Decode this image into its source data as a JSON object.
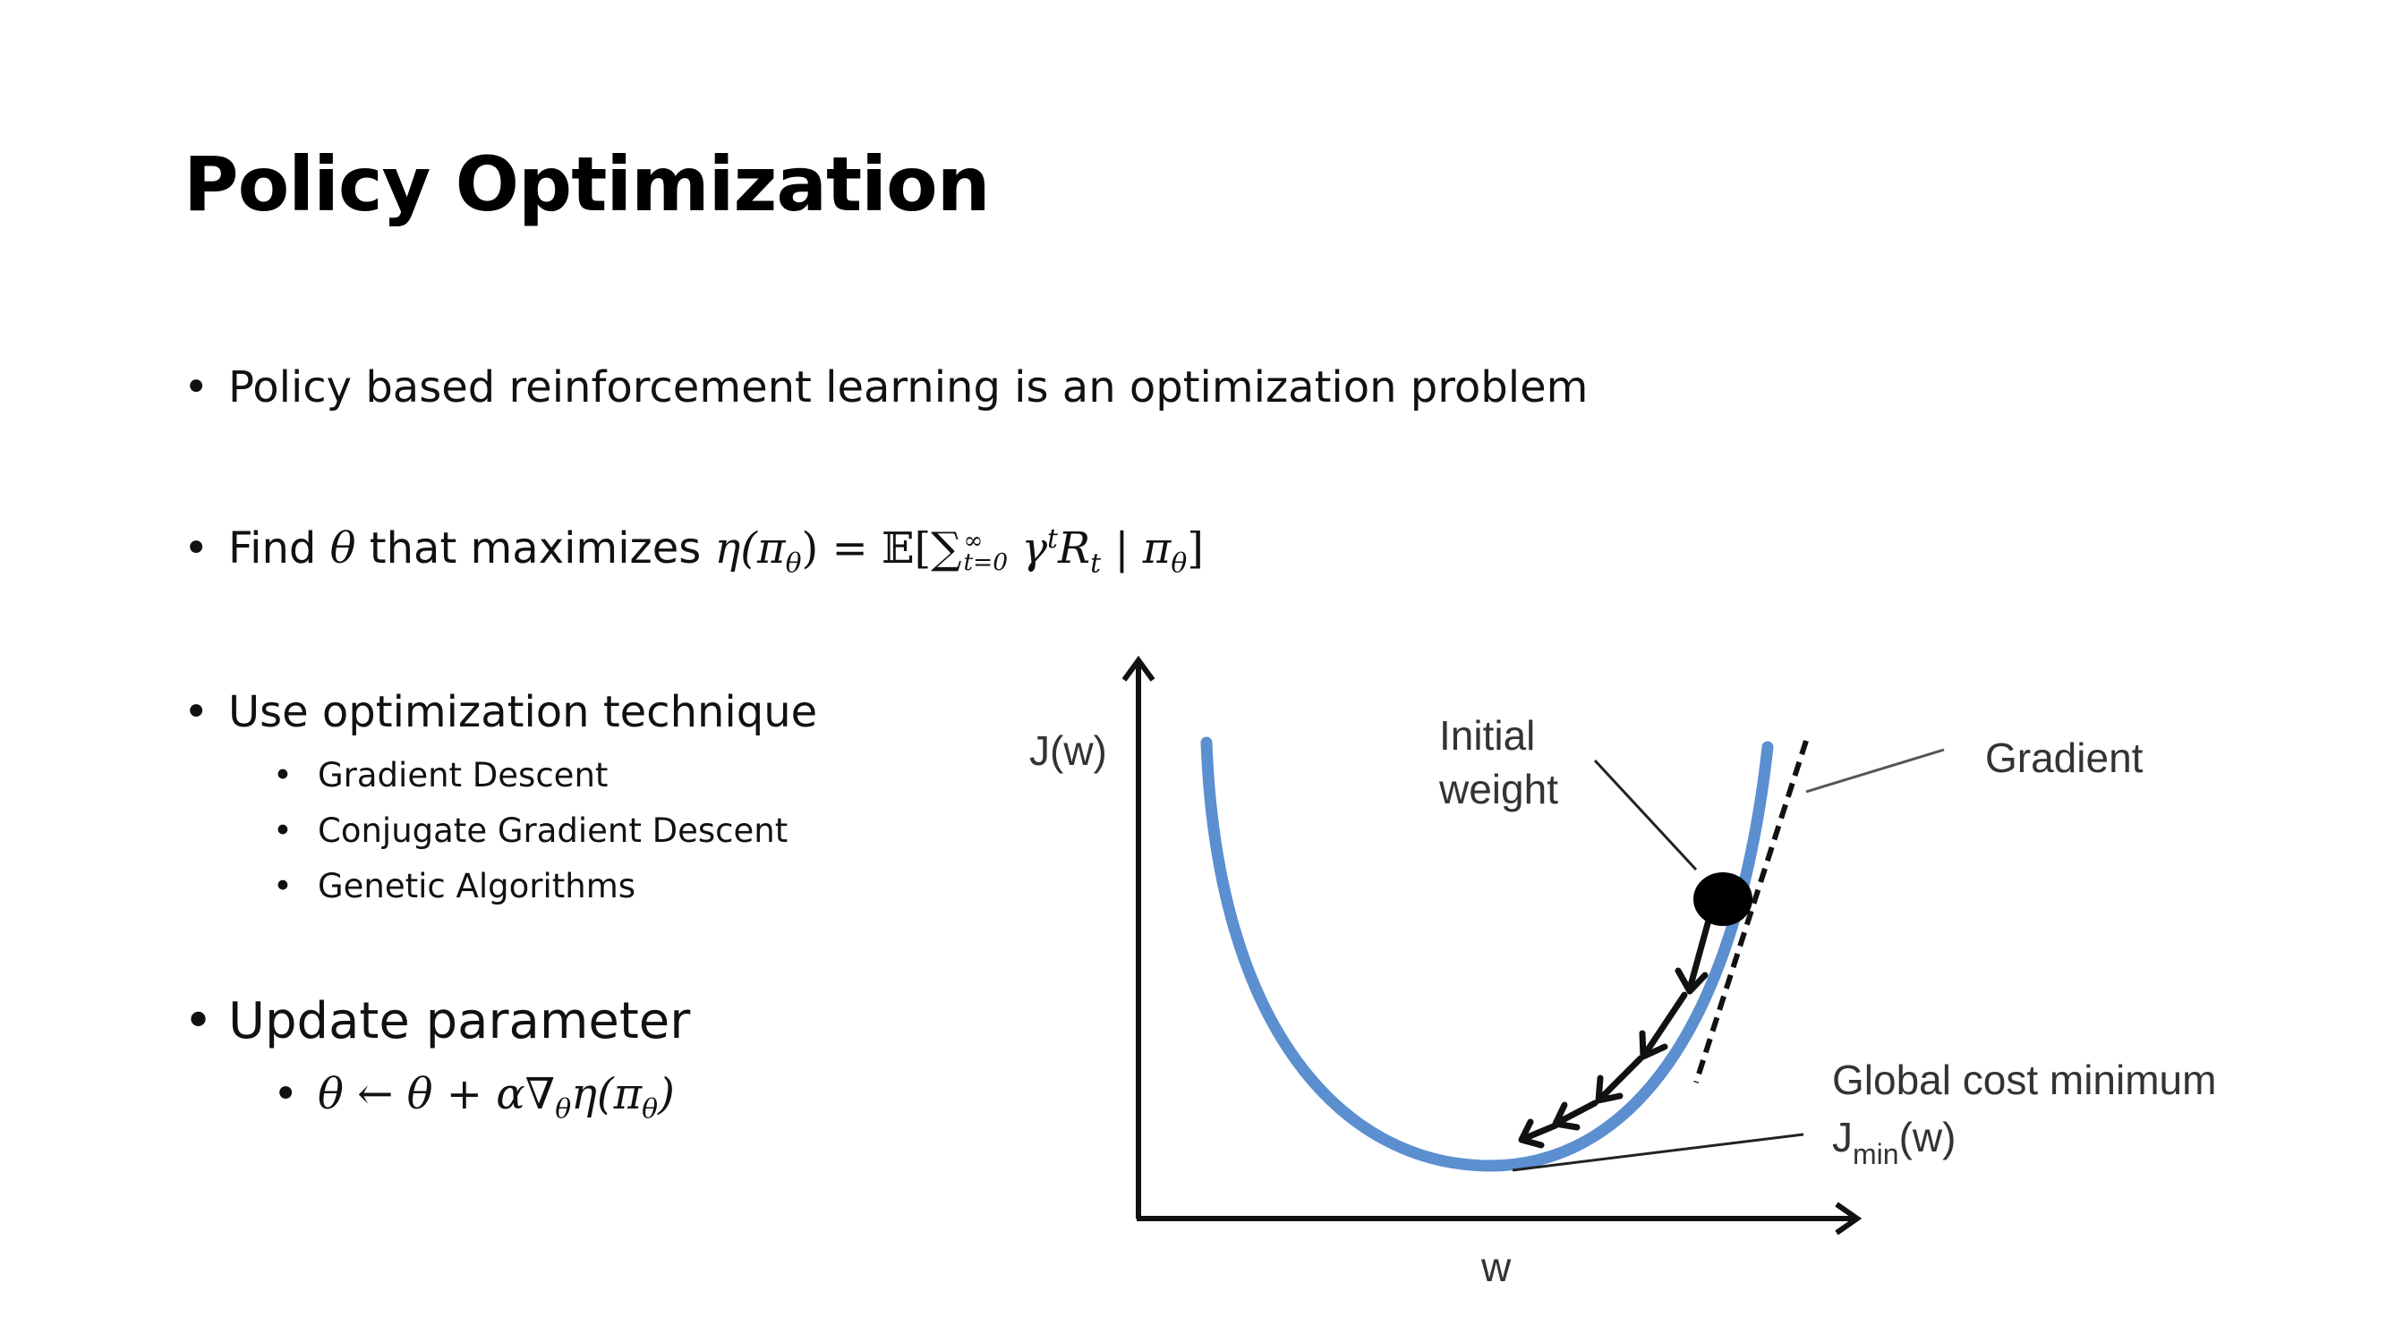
{
  "slide": {
    "title": "Policy Optimization",
    "bullets": {
      "b1": "Policy based reinforcement learning is an optimization problem",
      "b2_prefix": "Find",
      "b2_theta": "θ",
      "b2_middle": "that maximizes",
      "b2_formula": "η(π",
      "b2_formula_tail": ") = ",
      "b2_E": "𝔼[∑",
      "b2_sum_top": "∞",
      "b2_sum_bottom": "t=0",
      "b2_rest": "γ",
      "b2_t": "t",
      "b2_R": "R",
      "b2_Rsub": "t",
      "b2_end": " | π",
      "b2_endsub": "θ",
      "b2_close": "]",
      "b3": "Use optimization technique",
      "b3_subs": [
        "Gradient Descent",
        "Conjugate Gradient Descent",
        "Genetic Algorithms"
      ],
      "b4": "Update parameter",
      "b4_formula": "θ ← θ + α∇",
      "b4_formula_sub": "θ",
      "b4_formula_tail": "η(π",
      "b4_formula_tail2": ")"
    }
  },
  "diagram": {
    "y_axis_label": "J(w)",
    "x_axis_label": "w",
    "initial_weight_line1": "Initial",
    "initial_weight_line2": "weight",
    "gradient_label": "Gradient",
    "global_min_label": "Global cost minimum",
    "jmin_J": "J",
    "jmin_sub": "min",
    "jmin_tail": "(w)",
    "colors": {
      "curve": "#5b8fcf",
      "axes": "#111111",
      "ball": "#000000"
    }
  }
}
